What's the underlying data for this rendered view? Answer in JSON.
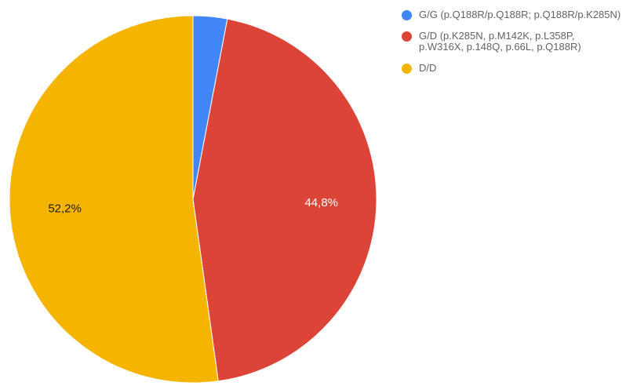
{
  "chart_data": {
    "type": "pie",
    "title": "",
    "slices": [
      {
        "label": "G/G (p.Q188R/p.Q188R; p.Q188R/p.K285N)",
        "value": 3.0,
        "color": "#4285f4",
        "data_label": ""
      },
      {
        "label": "G/D (p.K285N, p.M142K, p.L358P, p.W316X, p.148Q, p.66L, p.Q188R)",
        "value": 44.8,
        "color": "#db4437",
        "data_label": "44,8%"
      },
      {
        "label": "D/D",
        "value": 52.2,
        "color": "#f4b400",
        "data_label": "52,2%"
      }
    ],
    "legend_position": "right"
  }
}
